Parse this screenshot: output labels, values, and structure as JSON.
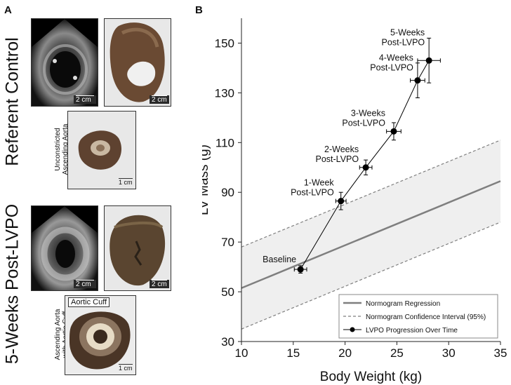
{
  "panel_a": {
    "letter": "A",
    "referent": {
      "title": "Referent Control",
      "echo_scale": "2 cm",
      "heart_scale": "2 cm",
      "aorta_label_line1": "Unconstricted",
      "aorta_label_line2": "Ascending Aorta",
      "aorta_scale": "1 cm"
    },
    "post": {
      "title": "5-Weeks Post-LVPO",
      "echo_scale": "2 cm",
      "heart_scale": "2 cm",
      "aorta_label_line1": "Ascending Aorta",
      "aorta_label_line2": "with Aortic Cuff",
      "aorta_callout": "Aortic Cuff",
      "aorta_scale": "1 cm"
    }
  },
  "panel_b": {
    "letter": "B"
  },
  "chart_data": {
    "type": "scatter",
    "xlabel": "Body Weight (kg)",
    "ylabel": "LV Mass (g)",
    "xlim": [
      10,
      35
    ],
    "ylim": [
      30,
      160
    ],
    "xticks": [
      10,
      15,
      20,
      25,
      30,
      35
    ],
    "yticks": [
      30,
      50,
      70,
      90,
      110,
      130,
      150
    ],
    "grid": false,
    "legend_position": "bottom-right",
    "colors": {
      "regression": "#7f7f7f",
      "confidence": "#7f7f7f",
      "band_fill": "#efefef",
      "progression": "#000000"
    },
    "series": [
      {
        "name": "Normogram Regression",
        "style": "solid-line",
        "x": [
          10,
          35
        ],
        "y": [
          51.5,
          94.5
        ]
      },
      {
        "name": "Normogram Confidence Interval (95%)",
        "style": "dashed-band",
        "x": [
          10,
          35
        ],
        "upper": [
          68,
          111
        ],
        "lower": [
          35,
          78
        ]
      },
      {
        "name": "LVPO Progression Over Time",
        "style": "line-markers",
        "points": [
          {
            "label": "Baseline",
            "x": 15.7,
            "y": 59,
            "xerr": 0.6,
            "yerr": 1.5
          },
          {
            "label_line1": "1-Week",
            "label_line2": "Post-LVPO",
            "x": 19.6,
            "y": 86.5,
            "xerr": 0.5,
            "yerr": 3.5
          },
          {
            "label_line1": "2-Weeks",
            "label_line2": "Post-LVPO",
            "x": 22.0,
            "y": 100,
            "xerr": 0.6,
            "yerr": 3
          },
          {
            "label_line1": "3-Weeks",
            "label_line2": "Post-LVPO",
            "x": 24.7,
            "y": 114.5,
            "xerr": 0.7,
            "yerr": 3.5
          },
          {
            "label_line1": "4-Weeks",
            "label_line2": "Post-LVPO",
            "x": 27.0,
            "y": 135,
            "xerr": 0.7,
            "yerr": 7
          },
          {
            "label_line1": "5-Weeks",
            "label_line2": "Post-LVPO",
            "x": 28.1,
            "y": 143,
            "xerr": 1.1,
            "yerr": 9
          }
        ]
      }
    ]
  }
}
